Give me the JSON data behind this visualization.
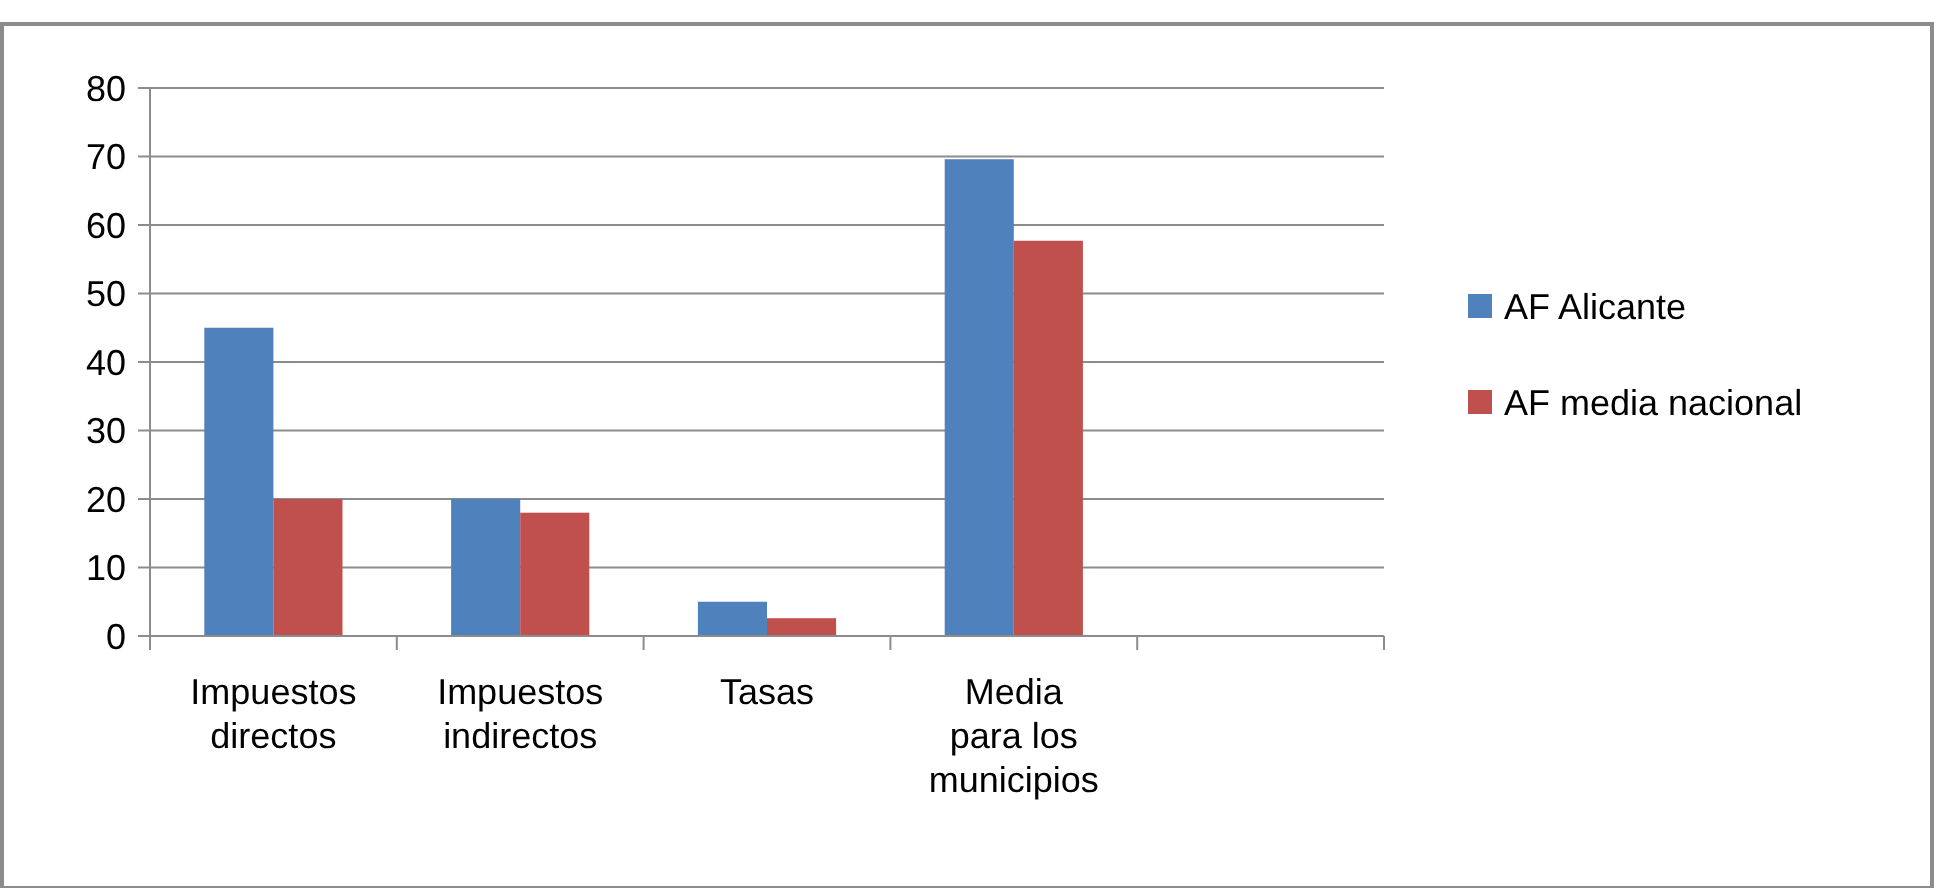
{
  "chart_data": {
    "type": "bar",
    "categories": [
      "Impuestos directos",
      "Impuestos indirectos",
      "Tasas",
      "Media para los municipios",
      null
    ],
    "series": [
      {
        "name": "AF Alicante",
        "color": "#4f81bd",
        "values": [
          45,
          20,
          5,
          69.6,
          null
        ]
      },
      {
        "name": "AF media nacional",
        "color": "#c0504d",
        "values": [
          20,
          18,
          2.6,
          57.7,
          null
        ]
      }
    ],
    "ylim": [
      0,
      80
    ],
    "yticks": [
      0,
      10,
      20,
      30,
      40,
      50,
      60,
      70,
      80
    ],
    "grid": "y",
    "legend": "right"
  }
}
